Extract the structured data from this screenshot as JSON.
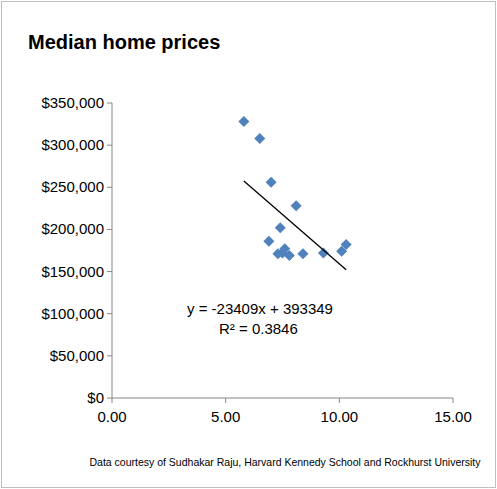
{
  "chart_data": {
    "type": "scatter",
    "title": "Median home prices",
    "series": [
      {
        "name": null,
        "color": "#4f81bd",
        "marker": "diamond",
        "x": [
          5.8,
          6.5,
          7.0,
          6.9,
          7.4,
          7.3,
          7.5,
          7.6,
          7.8,
          8.1,
          8.4,
          9.3,
          10.1,
          10.3
        ],
        "values": [
          328000,
          308000,
          256000,
          186000,
          202000,
          171000,
          172000,
          177000,
          169000,
          228000,
          171000,
          172000,
          174000,
          182000
        ]
      }
    ],
    "trendline": {
      "slope": -23409,
      "intercept": 393349,
      "x": [
        5.8,
        10.3
      ],
      "color": "#000000"
    },
    "annotations": [
      "y = -23409x + 393349",
      "R² = 0.3846"
    ],
    "source": "Data courtesy of Sudhakar Raju, Harvard Kennedy School and Rockhurst University",
    "xlim": [
      0,
      15
    ],
    "xticks": [
      {
        "value": 0,
        "label": "0.00"
      },
      {
        "value": 5,
        "label": "5.00"
      },
      {
        "value": 10,
        "label": "10.00"
      },
      {
        "value": 15,
        "label": "15.00"
      }
    ],
    "ylim": [
      0,
      350000
    ],
    "yticks": [
      {
        "value": 0,
        "label": "$0"
      },
      {
        "value": 50000,
        "label": "$50,000"
      },
      {
        "value": 100000,
        "label": "$100,000"
      },
      {
        "value": 150000,
        "label": "$150,000"
      },
      {
        "value": 200000,
        "label": "$200,000"
      },
      {
        "value": 250000,
        "label": "$250,000"
      },
      {
        "value": 300000,
        "label": "$300,000"
      },
      {
        "value": 350000,
        "label": "$350,000"
      }
    ],
    "grid": false
  }
}
